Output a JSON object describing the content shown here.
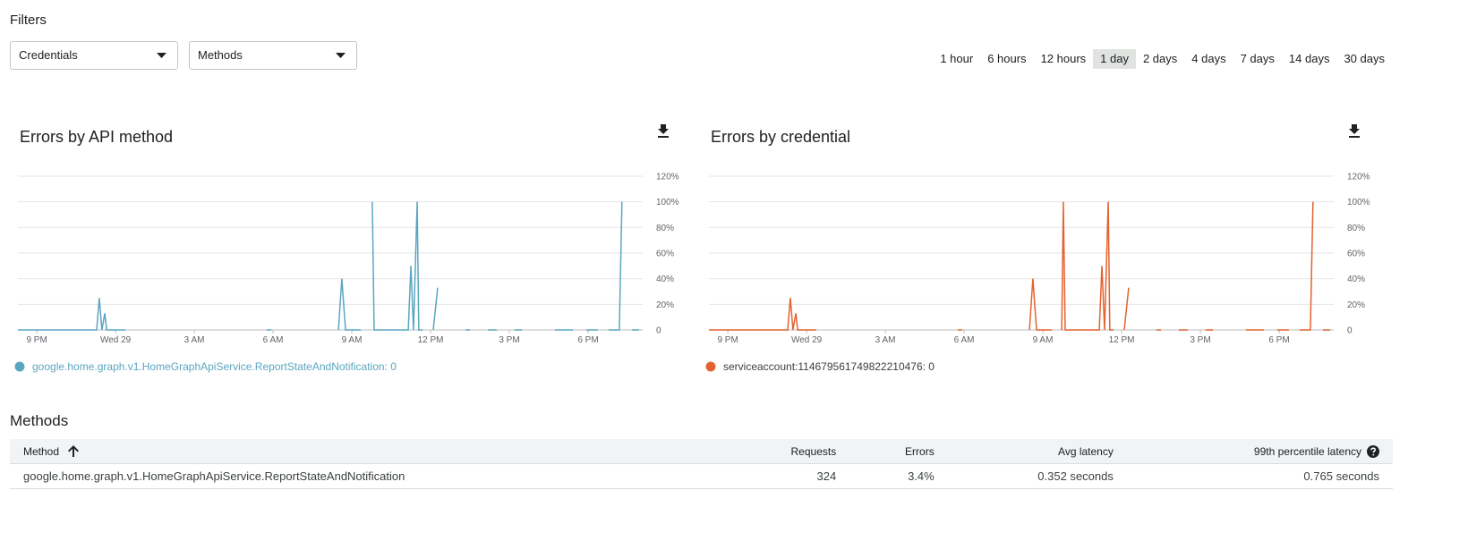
{
  "filters": {
    "title": "Filters",
    "dropdowns": [
      "Credentials",
      "Methods"
    ]
  },
  "time_ranges": {
    "options": [
      "1 hour",
      "6 hours",
      "12 hours",
      "1 day",
      "2 days",
      "4 days",
      "7 days",
      "14 days",
      "30 days"
    ],
    "selected_index": 3
  },
  "chart_data": [
    {
      "type": "line",
      "title": "Errors by API method",
      "x": [
        20.28,
        23.28,
        23.38,
        23.48,
        23.59,
        23.66,
        24.37,
        27,
        29.76,
        29.93,
        31,
        32.49,
        32.62,
        32.76,
        33.34,
        33.5,
        33.78,
        33.85,
        35.15,
        35.25,
        35.35,
        35.49,
        35.55,
        35.69,
        35.9,
        36.1,
        36.27,
        37,
        37.33,
        37.5,
        37.8,
        38.18,
        38.52,
        38.8,
        39.2,
        39.48,
        40,
        40.74,
        41.42,
        41.7,
        41.93,
        42.37,
        42.6,
        42.78,
        43.19,
        43.29,
        43.5,
        43.67,
        43.94
      ],
      "xlim": [
        20.28,
        44.08
      ],
      "xticks": [
        {
          "value": 21,
          "label": "9 PM"
        },
        {
          "value": 24,
          "label": "Wed 29"
        },
        {
          "value": 27,
          "label": "3 AM"
        },
        {
          "value": 30,
          "label": "6 AM"
        },
        {
          "value": 33,
          "label": "9 AM"
        },
        {
          "value": 36,
          "label": "12 PM"
        },
        {
          "value": 39,
          "label": "3 PM"
        },
        {
          "value": 42,
          "label": "6 PM"
        }
      ],
      "ylim": [
        0,
        120
      ],
      "yticks": [
        0,
        {
          "value": 20,
          "label": "20%"
        },
        {
          "value": 40,
          "label": "40%"
        },
        {
          "value": 60,
          "label": "60%"
        },
        {
          "value": 80,
          "label": "80%"
        },
        {
          "value": 100,
          "label": "100%"
        },
        {
          "value": 120,
          "label": "120%"
        }
      ],
      "grid": true,
      "series": [
        {
          "name": "google.home.graph.v1.HomeGraphApiService.ReportStateAndNotification: 0",
          "color": "#5aa6c2",
          "values": [
            0,
            0,
            25,
            0,
            13,
            0,
            0,
            null,
            0,
            0,
            null,
            0,
            40,
            0,
            0,
            null,
            100,
            0,
            0,
            50,
            0,
            100,
            0,
            0,
            null,
            0,
            33,
            null,
            0,
            0,
            null,
            0,
            0,
            null,
            0,
            0,
            null,
            0,
            0,
            null,
            0,
            0,
            null,
            0,
            0,
            100,
            null,
            0,
            0
          ]
        }
      ]
    },
    {
      "type": "line",
      "title": "Errors by credential",
      "x": [
        20.28,
        23.28,
        23.38,
        23.48,
        23.59,
        23.66,
        24.37,
        27,
        29.76,
        29.93,
        31,
        32.49,
        32.62,
        32.76,
        33.34,
        33.5,
        33.72,
        33.78,
        33.85,
        35.15,
        35.25,
        35.35,
        35.49,
        35.55,
        35.69,
        35.9,
        36.1,
        36.27,
        37,
        37.33,
        37.5,
        37.8,
        38.18,
        38.52,
        38.8,
        39.2,
        39.48,
        40,
        40.74,
        41.42,
        41.7,
        41.93,
        42.37,
        42.6,
        42.78,
        43.19,
        43.29,
        43.5,
        43.67,
        43.94
      ],
      "xlim": [
        20.28,
        44.08
      ],
      "xticks": [
        {
          "value": 21,
          "label": "9 PM"
        },
        {
          "value": 24,
          "label": "Wed 29"
        },
        {
          "value": 27,
          "label": "3 AM"
        },
        {
          "value": 30,
          "label": "6 AM"
        },
        {
          "value": 33,
          "label": "9 AM"
        },
        {
          "value": 36,
          "label": "12 PM"
        },
        {
          "value": 39,
          "label": "3 PM"
        },
        {
          "value": 42,
          "label": "6 PM"
        }
      ],
      "ylim": [
        0,
        120
      ],
      "yticks": [
        0,
        {
          "value": 20,
          "label": "20%"
        },
        {
          "value": 40,
          "label": "40%"
        },
        {
          "value": 60,
          "label": "60%"
        },
        {
          "value": 80,
          "label": "80%"
        },
        {
          "value": 100,
          "label": "100%"
        },
        {
          "value": 120,
          "label": "120%"
        }
      ],
      "grid": true,
      "series": [
        {
          "name": "serviceaccount:114679561749822210476: 0",
          "color": "#e4622f",
          "values": [
            0,
            0,
            25,
            0,
            13,
            0,
            0,
            null,
            0,
            0,
            null,
            0,
            40,
            0,
            0,
            null,
            0,
            100,
            0,
            0,
            50,
            0,
            100,
            0,
            0,
            null,
            0,
            33,
            null,
            0,
            0,
            null,
            0,
            0,
            null,
            0,
            0,
            null,
            0,
            0,
            null,
            0,
            0,
            null,
            0,
            0,
            100,
            null,
            0,
            0
          ]
        }
      ]
    }
  ],
  "methods_table": {
    "title": "Methods",
    "columns": [
      "Method",
      "Requests",
      "Errors",
      "Avg latency",
      "99th percentile latency"
    ],
    "rows": [
      [
        "google.home.graph.v1.HomeGraphApiService.ReportStateAndNotification",
        324,
        "3.4%",
        "0.352 seconds",
        "0.765 seconds"
      ]
    ]
  }
}
